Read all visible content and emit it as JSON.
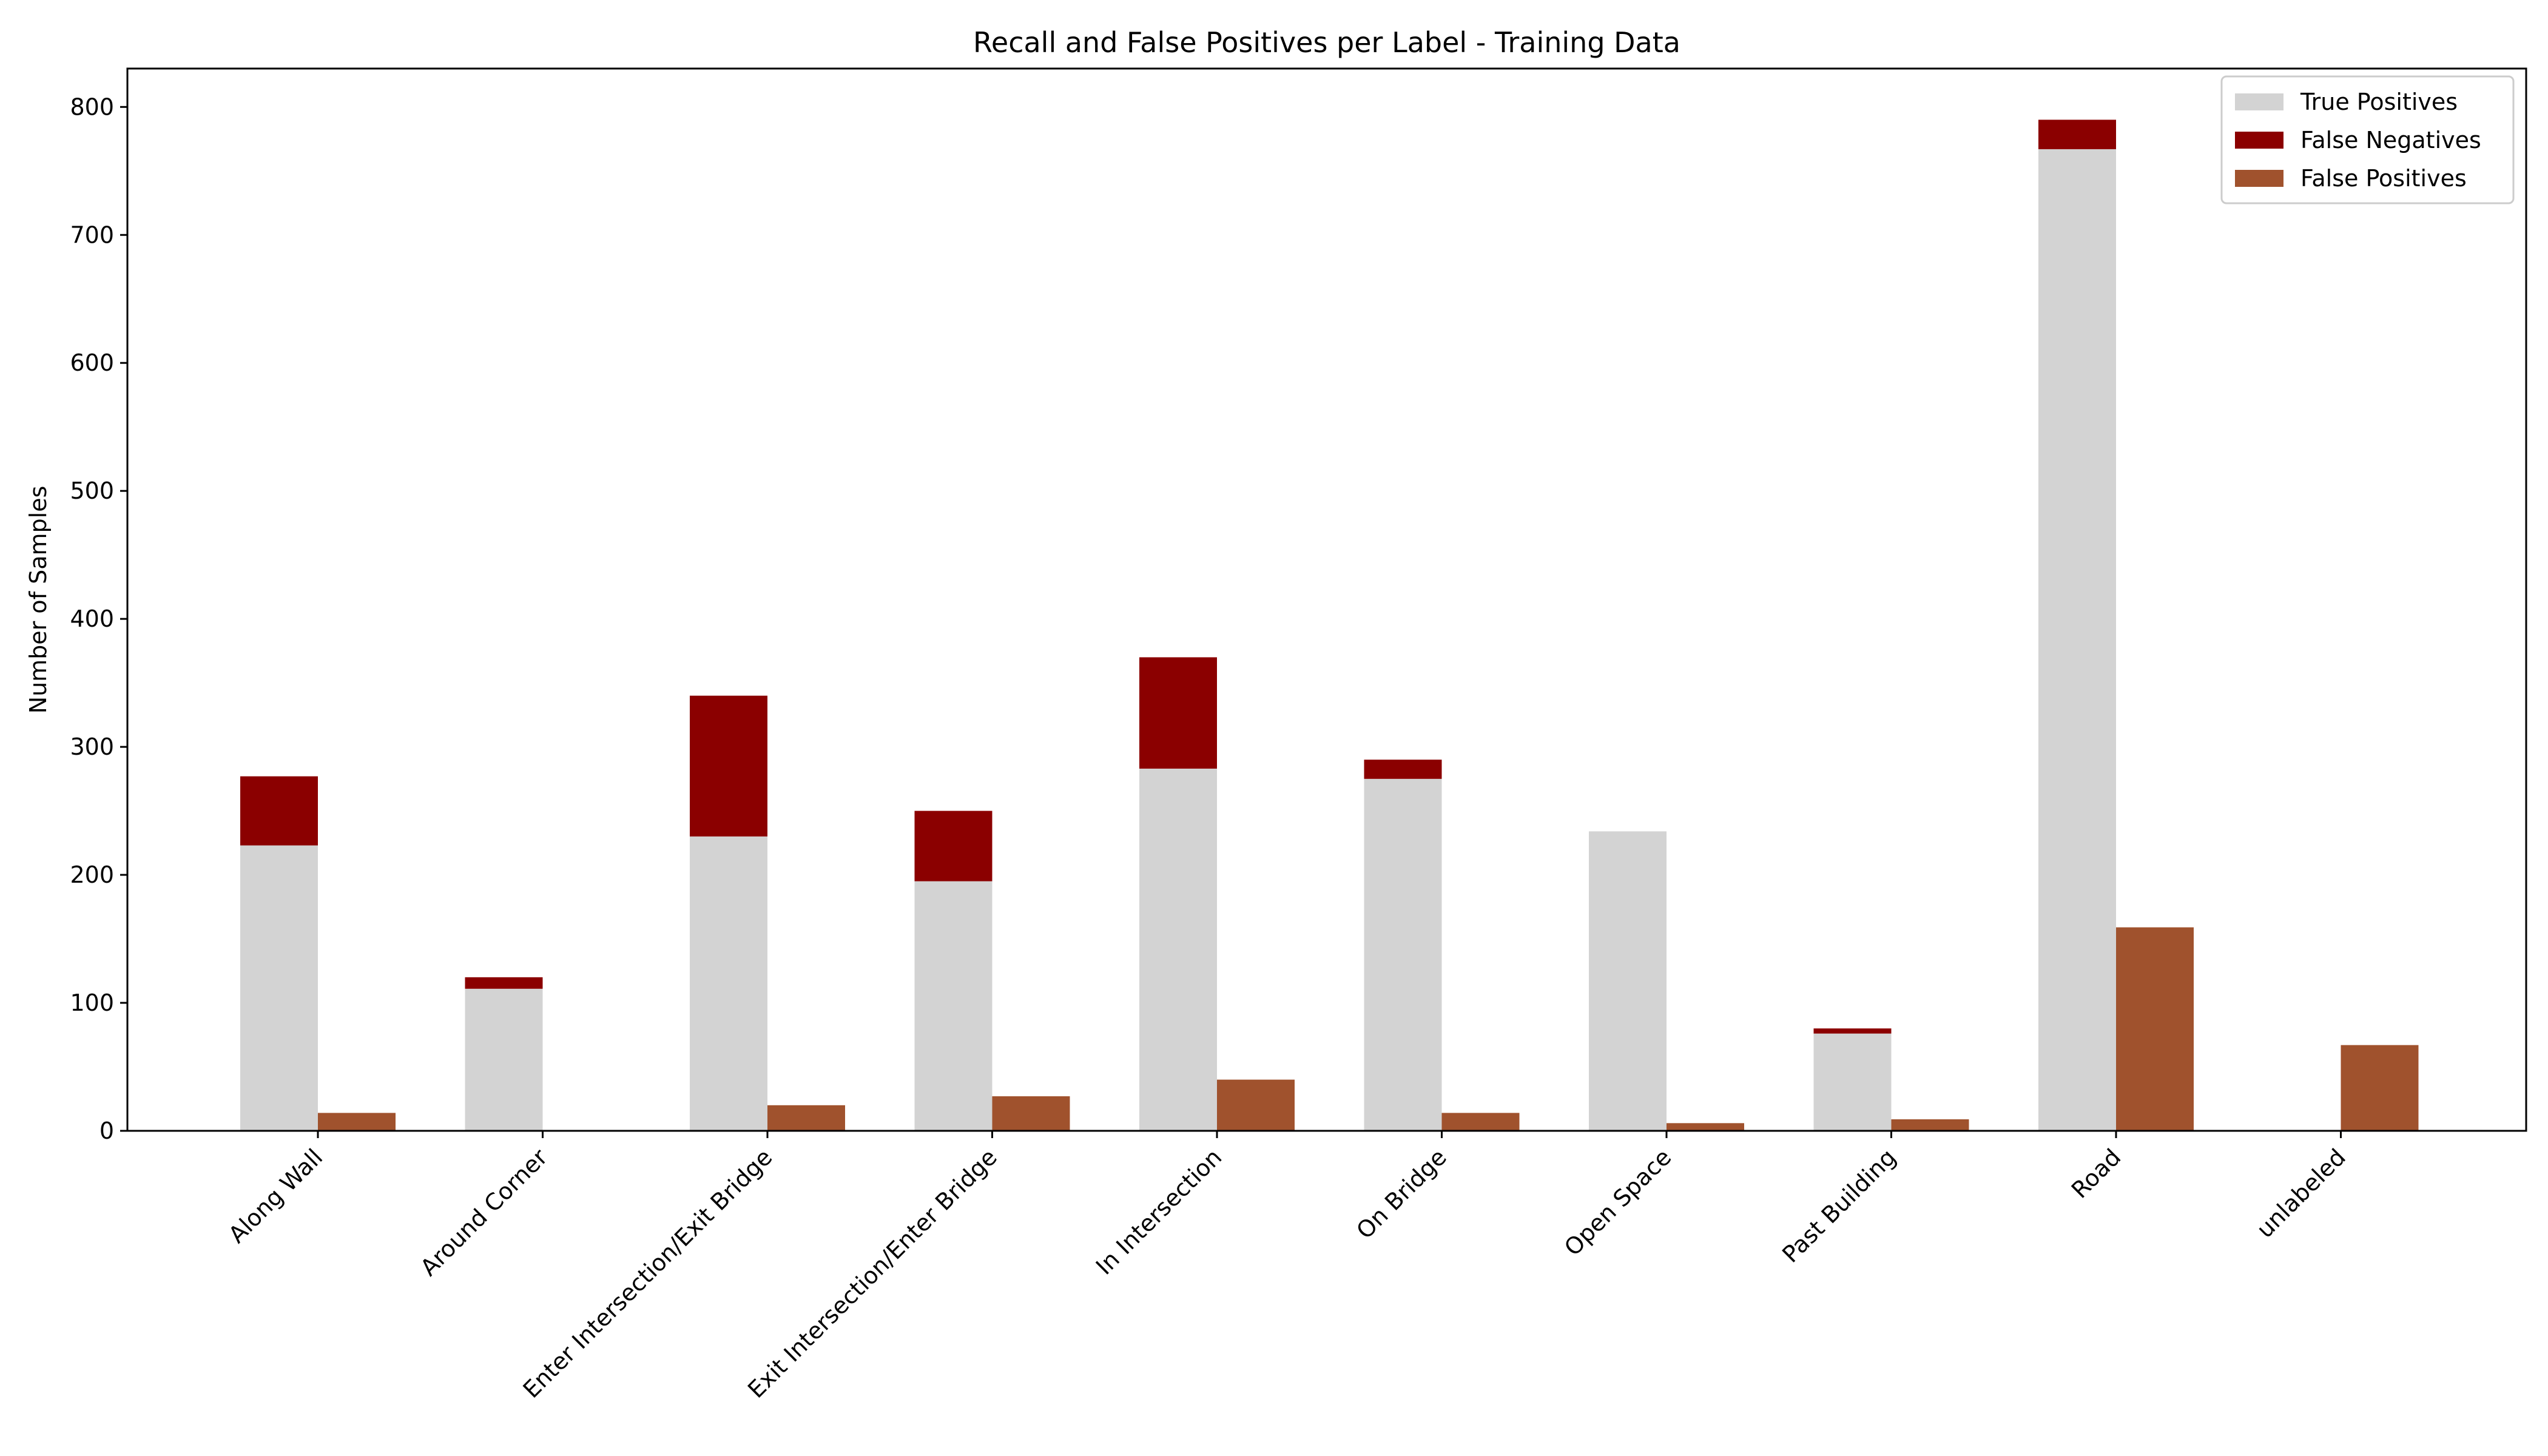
{
  "chart_data": {
    "type": "bar",
    "title": "Recall and False Positives per Label - Training Data",
    "xlabel": "",
    "ylabel": "Number of Samples",
    "ylim": [
      0,
      830
    ],
    "yticks": [
      0,
      100,
      200,
      300,
      400,
      500,
      600,
      700,
      800
    ],
    "grid": false,
    "legend_position": "top-right",
    "categories": [
      "Along Wall",
      "Around Corner",
      "Enter Intersection/Exit Bridge",
      "Exit Intersection/Enter Bridge",
      "In Intersection",
      "On Bridge",
      "Open Space",
      "Past Building",
      "Road",
      "unlabeled"
    ],
    "series": [
      {
        "name": "True Positives",
        "color": "#d3d3d3",
        "stack": "recall",
        "values": [
          223,
          111,
          230,
          195,
          283,
          275,
          234,
          76,
          767,
          0
        ]
      },
      {
        "name": "False Negatives",
        "color": "#8b0000",
        "stack": "recall",
        "values": [
          54,
          9,
          110,
          55,
          87,
          15,
          0,
          4,
          23,
          0
        ]
      },
      {
        "name": "False Positives",
        "color": "#a0522d",
        "stack": "fp",
        "values": [
          14,
          0,
          20,
          27,
          40,
          14,
          6,
          9,
          159,
          67
        ]
      }
    ]
  }
}
